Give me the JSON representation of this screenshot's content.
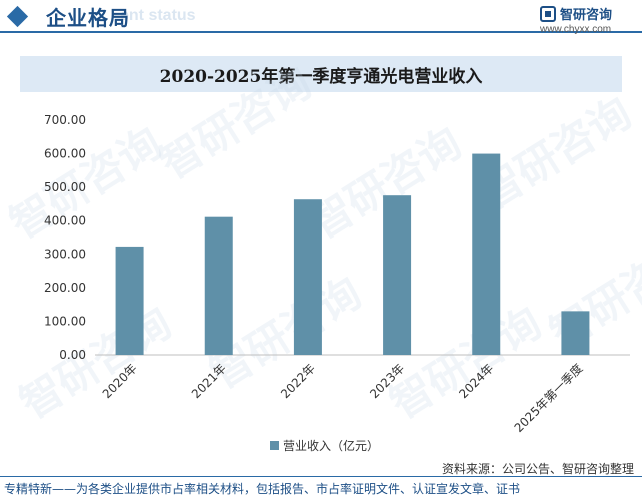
{
  "header": {
    "title": "企业格局",
    "ghost_text": "ent status",
    "logo_name": "智研咨询",
    "logo_url": "www.chyxx.com"
  },
  "watermark": {
    "text": "智研咨询"
  },
  "chart_data": {
    "type": "bar",
    "title": "2020-2025年第一季度亨通光电营业收入",
    "categories": [
      "2020年",
      "2021年",
      "2022年",
      "2023年",
      "2024年",
      "2025年第一季度"
    ],
    "series": [
      {
        "name": "营业收入（亿元）",
        "values": [
          322,
          412,
          464,
          476,
          600,
          130
        ]
      }
    ],
    "ylim": [
      0,
      700
    ],
    "yticks": [
      "0.00",
      "100.00",
      "200.00",
      "300.00",
      "400.00",
      "500.00",
      "600.00",
      "700.00"
    ],
    "legend_position": "bottom",
    "grid": false,
    "bar_color": "#5f90a8"
  },
  "footer": {
    "source": "资料来源：公司公告、智研咨询整理",
    "tagline": "专精特新——为各类企业提供市占率相关材料，包括报告、市占率证明文件、认证宣发文章、证书"
  }
}
